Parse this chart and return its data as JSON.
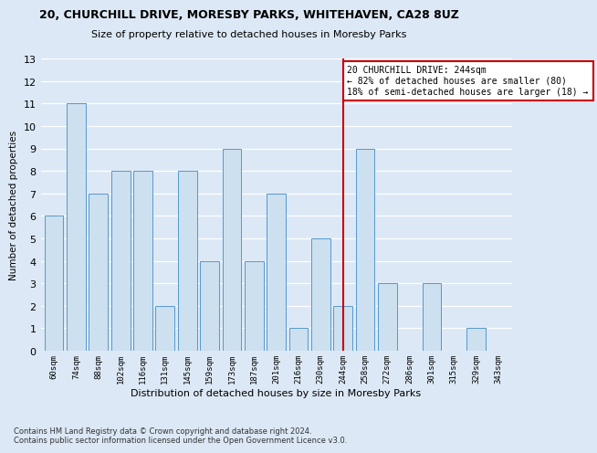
{
  "title": "20, CHURCHILL DRIVE, MORESBY PARKS, WHITEHAVEN, CA28 8UZ",
  "subtitle": "Size of property relative to detached houses in Moresby Parks",
  "xlabel": "Distribution of detached houses by size in Moresby Parks",
  "ylabel": "Number of detached properties",
  "categories": [
    "60sqm",
    "74sqm",
    "88sqm",
    "102sqm",
    "116sqm",
    "131sqm",
    "145sqm",
    "159sqm",
    "173sqm",
    "187sqm",
    "201sqm",
    "216sqm",
    "230sqm",
    "244sqm",
    "258sqm",
    "272sqm",
    "286sqm",
    "301sqm",
    "315sqm",
    "329sqm",
    "343sqm"
  ],
  "values": [
    6,
    11,
    7,
    8,
    8,
    2,
    8,
    4,
    9,
    4,
    7,
    1,
    5,
    2,
    9,
    3,
    0,
    3,
    0,
    1,
    0
  ],
  "bar_color": "#cce0f0",
  "bar_edge_color": "#5599cc",
  "highlight_index": 13,
  "highlight_color": "#cc0000",
  "annotation_text": "20 CHURCHILL DRIVE: 244sqm\n← 82% of detached houses are smaller (80)\n18% of semi-detached houses are larger (18) →",
  "annotation_box_color": "#ffffff",
  "annotation_box_edge": "#cc0000",
  "ylim": [
    0,
    13
  ],
  "yticks": [
    0,
    1,
    2,
    3,
    4,
    5,
    6,
    7,
    8,
    9,
    10,
    11,
    12,
    13
  ],
  "footer": "Contains HM Land Registry data © Crown copyright and database right 2024.\nContains public sector information licensed under the Open Government Licence v3.0.",
  "background_color": "#dce8f5",
  "plot_bg_color": "#dce8f5",
  "grid_color": "#ffffff"
}
